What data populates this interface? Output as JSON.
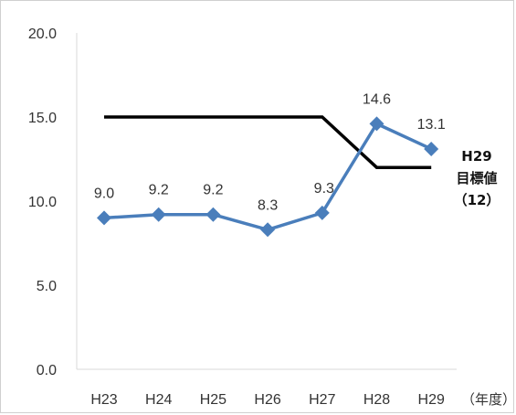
{
  "chart_data": {
    "type": "line",
    "categories": [
      "H23",
      "H24",
      "H25",
      "H26",
      "H27",
      "H28",
      "H29"
    ],
    "series": [
      {
        "values": [
          9.0,
          9.2,
          9.2,
          8.3,
          9.3,
          14.6,
          13.1
        ],
        "data_labels": [
          "9.0",
          "9.2",
          "9.2",
          "8.3",
          "9.3",
          "14.6",
          "13.1"
        ],
        "color": "#4a7ebb",
        "marker": "diamond"
      },
      {
        "values": [
          15.0,
          15.0,
          15.0,
          15.0,
          15.0,
          12.0,
          12.0
        ],
        "color": "#000000"
      }
    ],
    "y_ticks": [
      "0.0",
      "5.0",
      "10.0",
      "15.0",
      "20.0"
    ],
    "ylim": [
      0,
      20
    ],
    "x_unit": "（年度）",
    "target_annotation": [
      "H29",
      "目標値",
      "（12）"
    ],
    "grid": false,
    "legend": "none"
  }
}
